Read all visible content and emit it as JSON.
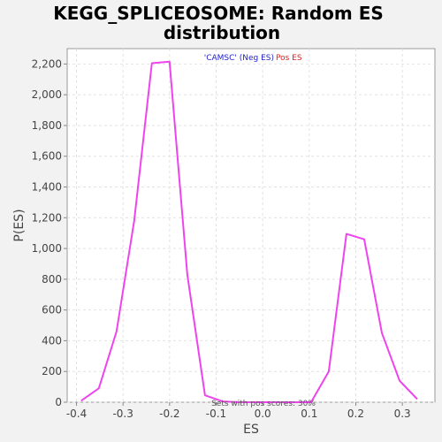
{
  "chart_data": {
    "type": "line",
    "title_line1": "KEGG_SPLICEOSOME: Random ES",
    "title_line2": "distribution",
    "xlabel": "ES",
    "ylabel": "P(ES)",
    "xlim": [
      -0.42,
      0.37
    ],
    "ylim": [
      0,
      2300
    ],
    "x_ticks": [
      -0.4,
      -0.3,
      -0.2,
      -0.1,
      0.0,
      0.1,
      0.2,
      0.3
    ],
    "x_tick_labels": [
      "-0.4",
      "-0.3",
      "-0.2",
      "-0.1",
      "0.0",
      "0.1",
      "0.2",
      "0.3"
    ],
    "y_ticks": [
      0,
      200,
      400,
      600,
      800,
      1000,
      1200,
      1400,
      1600,
      1800,
      2000,
      2200
    ],
    "y_tick_labels": [
      "0",
      "200",
      "400",
      "600",
      "800",
      "1,000",
      "1,200",
      "1,400",
      "1,600",
      "1,800",
      "2,000",
      "2,200"
    ],
    "grid": true,
    "legend": {
      "placement": "top-center",
      "neg_label": "'CAMSC' (Neg ES)",
      "pos_label": "Pos ES",
      "neg_color": "#2222cc",
      "pos_color": "#dd2222"
    },
    "annotation": "Sets with pos scores: 30%",
    "series": [
      {
        "color": "#ee44ee",
        "x": [
          -0.39,
          -0.352,
          -0.314,
          -0.276,
          -0.238,
          -0.2,
          -0.162,
          -0.124,
          -0.086,
          -0.048,
          -0.01,
          0.028,
          0.066,
          0.104,
          0.142,
          0.18,
          0.218,
          0.256,
          0.294,
          0.332
        ],
        "y": [
          10,
          90,
          460,
          1180,
          2205,
          2215,
          830,
          45,
          5,
          0,
          0,
          0,
          0,
          0,
          200,
          1095,
          1060,
          450,
          140,
          20
        ]
      }
    ]
  }
}
